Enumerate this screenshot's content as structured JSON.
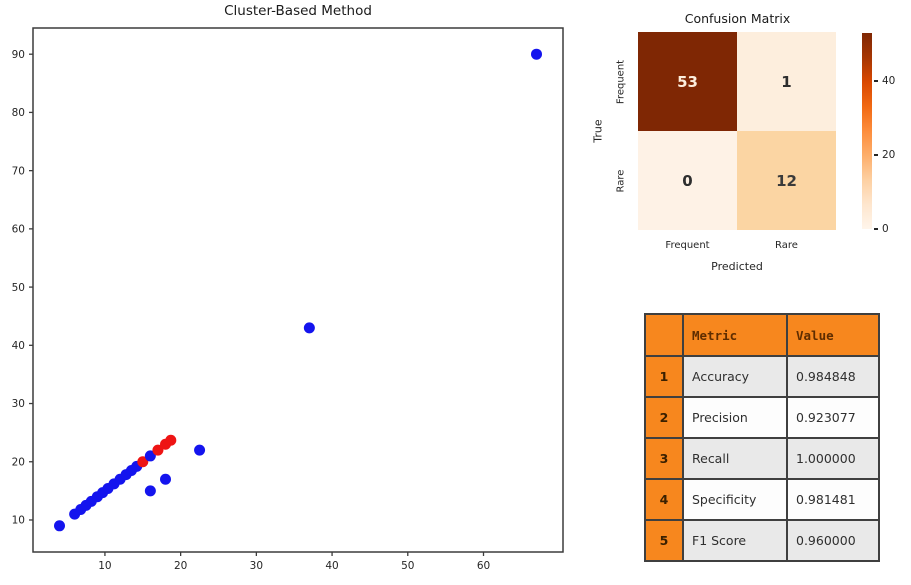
{
  "chart_data": [
    {
      "type": "scatter",
      "title": "Cluster-Based Method",
      "xlabel": "",
      "ylabel": "",
      "xlim": [
        0.5,
        70.5
      ],
      "ylim": [
        4.5,
        94.5
      ],
      "xticks": [
        10,
        20,
        30,
        40,
        50,
        60
      ],
      "yticks": [
        10,
        20,
        30,
        40,
        50,
        60,
        70,
        80,
        90
      ],
      "grid": false,
      "legend": "none",
      "series": [
        {
          "name": "blue",
          "color": "#1414ee"
        },
        {
          "name": "red",
          "color": "#ee1414"
        }
      ],
      "points": [
        [
          4,
          9,
          "blue"
        ],
        [
          6,
          11,
          "blue"
        ],
        [
          6.8,
          11.8,
          "blue"
        ],
        [
          7.5,
          12.5,
          "blue"
        ],
        [
          8.2,
          13.2,
          "blue"
        ],
        [
          9,
          14,
          "blue"
        ],
        [
          9.7,
          14.7,
          "blue"
        ],
        [
          10.4,
          15.4,
          "blue"
        ],
        [
          11.2,
          16.2,
          "blue"
        ],
        [
          12,
          17,
          "blue"
        ],
        [
          12.8,
          17.8,
          "blue"
        ],
        [
          13.5,
          18.5,
          "blue"
        ],
        [
          14.2,
          19.2,
          "blue"
        ],
        [
          15,
          20,
          "red"
        ],
        [
          16,
          21,
          "blue"
        ],
        [
          17,
          22,
          "red"
        ],
        [
          18,
          23,
          "red"
        ],
        [
          18.7,
          23.7,
          "red"
        ],
        [
          16,
          15,
          "blue"
        ],
        [
          18,
          17,
          "blue"
        ],
        [
          22.5,
          22,
          "blue"
        ],
        [
          37,
          43,
          "blue"
        ],
        [
          67,
          90,
          "blue"
        ]
      ]
    },
    {
      "type": "heatmap",
      "title": "Confusion Matrix",
      "xlabel": "Predicted",
      "ylabel": "True",
      "x_categories": [
        "Frequent",
        "Rare"
      ],
      "y_categories": [
        "Frequent",
        "Rare"
      ],
      "values": [
        [
          53,
          1
        ],
        [
          0,
          12
        ]
      ],
      "cell_colors": [
        [
          "#7f2704",
          "#fdeedd"
        ],
        [
          "#fef2e6",
          "#fbd5a3"
        ]
      ],
      "cell_text_colors": [
        [
          "#fdeedd",
          "#2e2e2e"
        ],
        [
          "#2e2e2e",
          "#3a3a3a"
        ]
      ],
      "colorbar": {
        "vmin": 0,
        "vmax": 53,
        "ticks": [
          0,
          20,
          40
        ],
        "gradient_top_to_bottom": [
          "#7f2704",
          "#a63603",
          "#d94801",
          "#f16913",
          "#fd8d3c",
          "#fdae6b",
          "#fdd0a2",
          "#fee6ce",
          "#fff5eb"
        ]
      }
    },
    {
      "type": "table",
      "columns": [
        "",
        "Metric",
        "Value"
      ],
      "rows": [
        [
          "1",
          "Accuracy",
          "0.984848"
        ],
        [
          "2",
          "Precision",
          "0.923077"
        ],
        [
          "3",
          "Recall",
          "1.000000"
        ],
        [
          "4",
          "Specificity",
          "0.981481"
        ],
        [
          "5",
          "F1 Score",
          "0.960000"
        ]
      ],
      "styles": {
        "header_bg": "#f7871e",
        "header_text": "#5f2d00",
        "row_num_bg": "#f7871e",
        "row_num_text": "#3a2000",
        "row_bg_alt": "#e9e9e9",
        "row_bg": "#fdfdfd",
        "border": "#3f3f3f",
        "cell_text": "#2f2f2f"
      }
    }
  ]
}
